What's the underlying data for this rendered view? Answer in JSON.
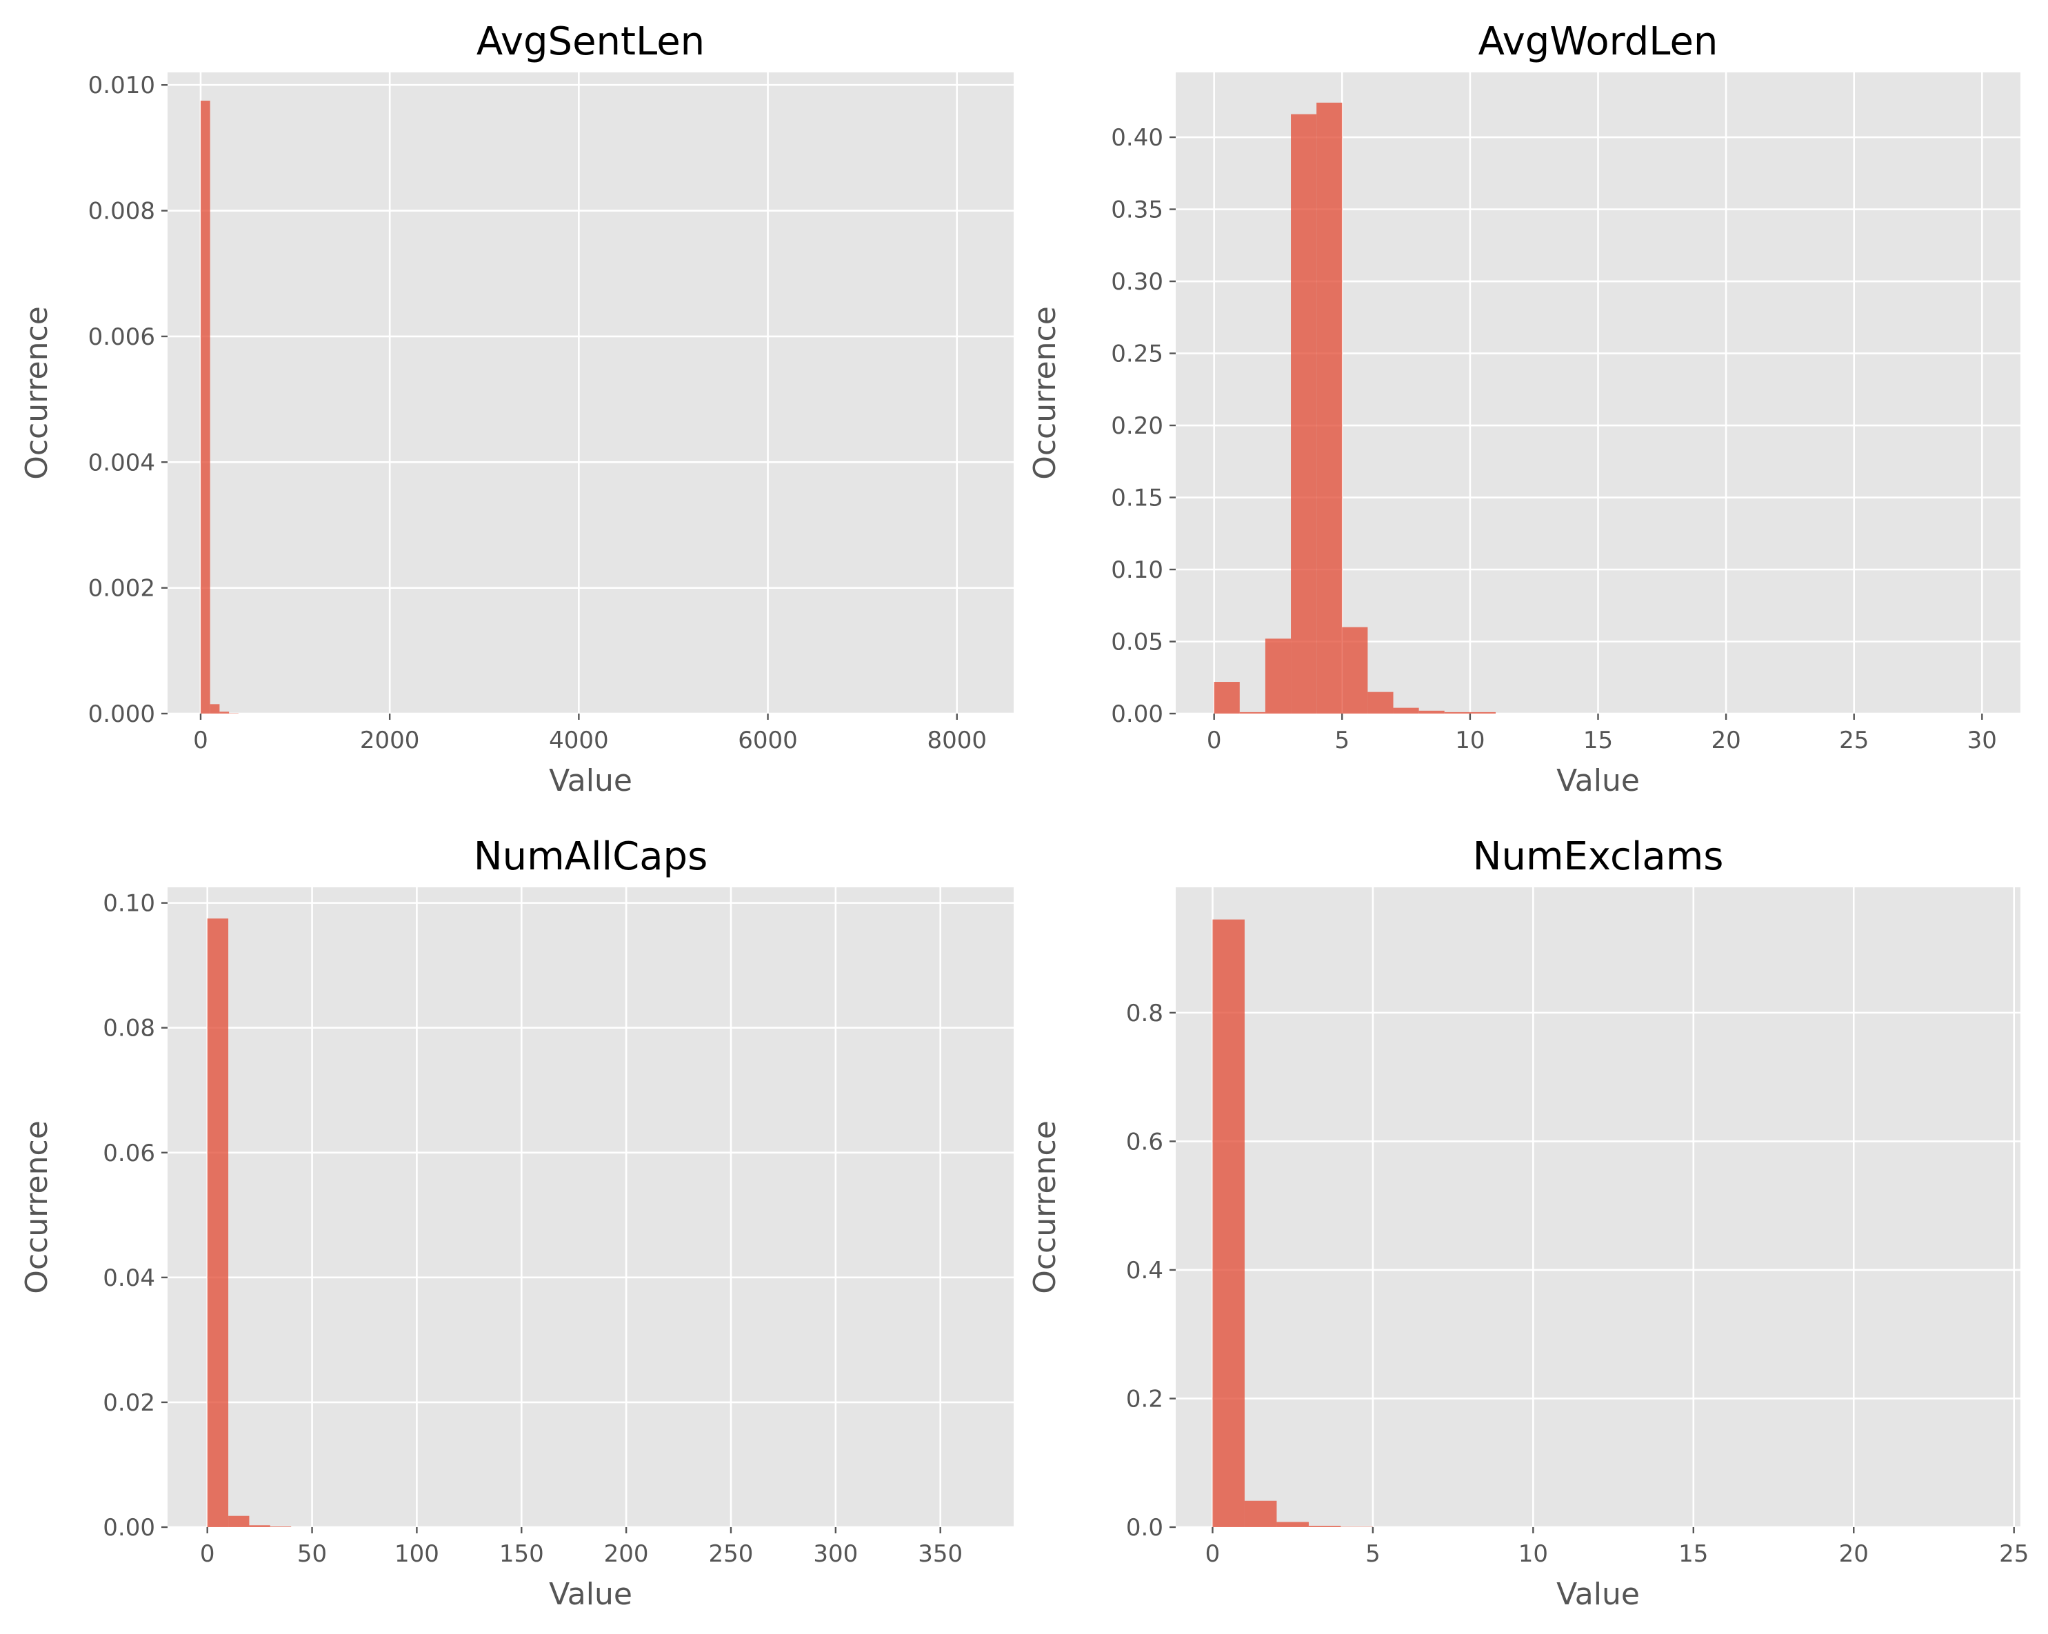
{
  "chart_data": [
    {
      "type": "bar",
      "title": "AvgSentLen",
      "xlabel": "Value",
      "ylabel": "Occurrence",
      "xlim": [
        -350,
        8600
      ],
      "ylim": [
        0,
        0.0102
      ],
      "xticks": [
        0,
        2000,
        4000,
        6000,
        8000
      ],
      "xtick_labels": [
        "0",
        "2000",
        "4000",
        "6000",
        "8000"
      ],
      "yticks": [
        0,
        0.002,
        0.004,
        0.006,
        0.008,
        0.01
      ],
      "ytick_labels": [
        "0.000",
        "0.002",
        "0.004",
        "0.006",
        "0.008",
        "0.010"
      ],
      "grid": true,
      "bar_color": "#e24a33",
      "bins": [
        {
          "x0": 0,
          "x1": 100,
          "value": 0.00975
        },
        {
          "x0": 100,
          "x1": 200,
          "value": 0.00015
        },
        {
          "x0": 200,
          "x1": 300,
          "value": 3e-05
        },
        {
          "x0": 300,
          "x1": 400,
          "value": 5e-06
        }
      ]
    },
    {
      "type": "bar",
      "title": "AvgWordLen",
      "xlabel": "Value",
      "ylabel": "Occurrence",
      "xlim": [
        -1.5,
        31.5
      ],
      "ylim": [
        0,
        0.445
      ],
      "xticks": [
        0,
        5,
        10,
        15,
        20,
        25,
        30
      ],
      "xtick_labels": [
        "0",
        "5",
        "10",
        "15",
        "20",
        "25",
        "30"
      ],
      "yticks": [
        0,
        0.05,
        0.1,
        0.15,
        0.2,
        0.25,
        0.3,
        0.35,
        0.4
      ],
      "ytick_labels": [
        "0.00",
        "0.05",
        "0.10",
        "0.15",
        "0.20",
        "0.25",
        "0.30",
        "0.35",
        "0.40"
      ],
      "grid": true,
      "bar_color": "#e24a33",
      "bins": [
        {
          "x0": 0,
          "x1": 1,
          "value": 0.022
        },
        {
          "x0": 1,
          "x1": 2,
          "value": 0.001
        },
        {
          "x0": 2,
          "x1": 3,
          "value": 0.052
        },
        {
          "x0": 3,
          "x1": 4,
          "value": 0.416
        },
        {
          "x0": 4,
          "x1": 5,
          "value": 0.424
        },
        {
          "x0": 5,
          "x1": 6,
          "value": 0.06
        },
        {
          "x0": 6,
          "x1": 7,
          "value": 0.015
        },
        {
          "x0": 7,
          "x1": 8,
          "value": 0.004
        },
        {
          "x0": 8,
          "x1": 9,
          "value": 0.002
        },
        {
          "x0": 9,
          "x1": 10,
          "value": 0.001
        },
        {
          "x0": 10,
          "x1": 11,
          "value": 0.001
        }
      ]
    },
    {
      "type": "bar",
      "title": "NumAllCaps",
      "xlabel": "Value",
      "ylabel": "Occurrence",
      "xlim": [
        -19,
        385
      ],
      "ylim": [
        0,
        0.1025
      ],
      "xticks": [
        0,
        50,
        100,
        150,
        200,
        250,
        300,
        350
      ],
      "xtick_labels": [
        "0",
        "50",
        "100",
        "150",
        "200",
        "250",
        "300",
        "350"
      ],
      "yticks": [
        0,
        0.02,
        0.04,
        0.06,
        0.08,
        0.1
      ],
      "ytick_labels": [
        "0.00",
        "0.02",
        "0.04",
        "0.06",
        "0.08",
        "0.10"
      ],
      "grid": true,
      "bar_color": "#e24a33",
      "bins": [
        {
          "x0": 0,
          "x1": 10,
          "value": 0.0975
        },
        {
          "x0": 10,
          "x1": 20,
          "value": 0.0018
        },
        {
          "x0": 20,
          "x1": 30,
          "value": 0.0003
        },
        {
          "x0": 30,
          "x1": 40,
          "value": 0.0001
        }
      ]
    },
    {
      "type": "bar",
      "title": "NumExclams",
      "xlabel": "Value",
      "ylabel": "Occurrence",
      "xlim": [
        -1.15,
        25.2
      ],
      "ylim": [
        0,
        0.995
      ],
      "xticks": [
        0,
        5,
        10,
        15,
        20,
        25
      ],
      "xtick_labels": [
        "0",
        "5",
        "10",
        "15",
        "20",
        "25"
      ],
      "yticks": [
        0,
        0.2,
        0.4,
        0.6,
        0.8
      ],
      "ytick_labels": [
        "0.0",
        "0.2",
        "0.4",
        "0.6",
        "0.8"
      ],
      "grid": true,
      "bar_color": "#e24a33",
      "bins": [
        {
          "x0": 0,
          "x1": 1,
          "value": 0.945
        },
        {
          "x0": 1,
          "x1": 2,
          "value": 0.041
        },
        {
          "x0": 2,
          "x1": 3,
          "value": 0.008
        },
        {
          "x0": 3,
          "x1": 4,
          "value": 0.002
        },
        {
          "x0": 4,
          "x1": 5,
          "value": 0.0005
        }
      ]
    }
  ]
}
